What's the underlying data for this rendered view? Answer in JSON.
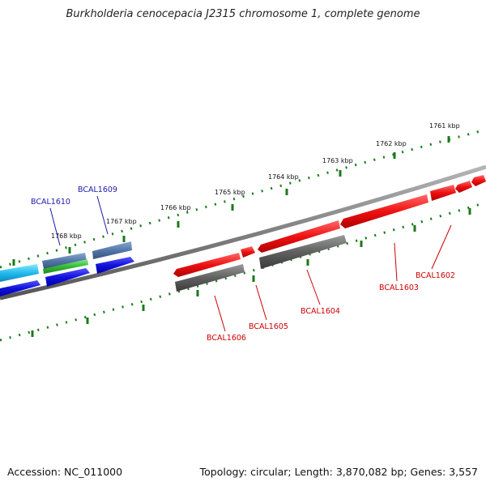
{
  "title": "Burkholderia cenocepacia J2315 chromosome 1, complete genome",
  "footer": {
    "accession": "Accession: NC_011000",
    "summary": "Topology: circular; Length: 3,870,082 bp; Genes: 3,557"
  },
  "ruler_labels": [
    "1761 kbp",
    "1762 kbp",
    "1763 kbp",
    "1764 kbp",
    "1765 kbp",
    "1766 kbp",
    "1767 kbp",
    "1768 kbp"
  ],
  "gene_labels": {
    "blue": [
      "BCAL1610",
      "BCAL1609"
    ],
    "red": [
      "BCAL1602",
      "BCAL1603",
      "BCAL1604",
      "BCAL1605",
      "BCAL1606"
    ]
  },
  "colors": {
    "blue_label": "#1a1aaa",
    "red_label": "#cc0000",
    "tick": "#1a7a1a",
    "backbone": "#808080",
    "red_feature": "#ee1111",
    "gray_feature": "#606060",
    "blue_feature": "#1111dd",
    "cyan_feature": "#22bbee",
    "green_feature": "#33bb33",
    "steel_feature": "#5577aa"
  }
}
